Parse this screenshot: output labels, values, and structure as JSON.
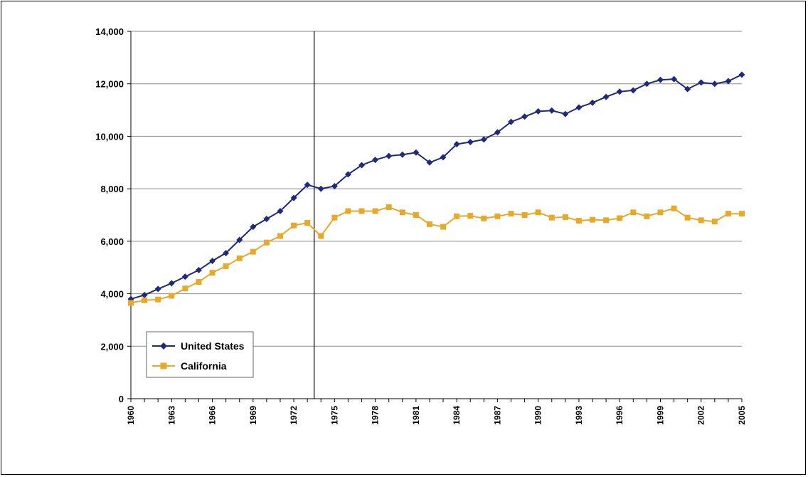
{
  "chart_data": {
    "type": "line",
    "title": "",
    "xlabel": "",
    "ylabel": "",
    "ylim": [
      0,
      14000
    ],
    "xlim": [
      1960,
      2005
    ],
    "grid": "horizontal",
    "legend_position": "bottom-left",
    "y_ticks": [
      "0",
      "2,000",
      "4,000",
      "6,000",
      "8,000",
      "10,000",
      "12,000",
      "14,000"
    ],
    "y_tick_values": [
      0,
      2000,
      4000,
      6000,
      8000,
      10000,
      12000,
      14000
    ],
    "x_ticks": [
      "1960",
      "1963",
      "1966",
      "1969",
      "1972",
      "1975",
      "1978",
      "1981",
      "1984",
      "1987",
      "1990",
      "1993",
      "1996",
      "1999",
      "2002",
      "2005"
    ],
    "x_tick_values": [
      1960,
      1963,
      1966,
      1969,
      1972,
      1975,
      1978,
      1981,
      1984,
      1987,
      1990,
      1993,
      1996,
      1999,
      2002,
      2005
    ],
    "reference_line_x": 1973.5,
    "x": [
      1960,
      1961,
      1962,
      1963,
      1964,
      1965,
      1966,
      1967,
      1968,
      1969,
      1970,
      1971,
      1972,
      1973,
      1974,
      1975,
      1976,
      1977,
      1978,
      1979,
      1980,
      1981,
      1982,
      1983,
      1984,
      1985,
      1986,
      1987,
      1988,
      1989,
      1990,
      1991,
      1992,
      1993,
      1994,
      1995,
      1996,
      1997,
      1998,
      1999,
      2000,
      2001,
      2002,
      2003,
      2004,
      2005
    ],
    "series": [
      {
        "name": "United States",
        "color": "#1f2a7a",
        "marker": "diamond",
        "values": [
          3800,
          3950,
          4180,
          4400,
          4650,
          4900,
          5250,
          5550,
          6050,
          6550,
          6850,
          7150,
          7650,
          8150,
          8000,
          8100,
          8550,
          8900,
          9100,
          9250,
          9300,
          9380,
          9000,
          9200,
          9700,
          9780,
          9880,
          10150,
          10550,
          10750,
          10950,
          10980,
          10850,
          11100,
          11280,
          11500,
          11700,
          11750,
          12000,
          12150,
          12180,
          11800,
          12050,
          12000,
          12100,
          12350
        ]
      },
      {
        "name": "California",
        "color": "#e8a82a",
        "marker": "square",
        "values": [
          3650,
          3750,
          3780,
          3920,
          4200,
          4450,
          4800,
          5050,
          5350,
          5600,
          5950,
          6200,
          6600,
          6700,
          6200,
          6900,
          7150,
          7150,
          7150,
          7300,
          7100,
          7000,
          6650,
          6550,
          6950,
          6970,
          6870,
          6950,
          7050,
          7000,
          7100,
          6900,
          6920,
          6780,
          6820,
          6800,
          6880,
          7100,
          6950,
          7100,
          7250,
          6900,
          6800,
          6750,
          7050,
          7050
        ]
      }
    ]
  }
}
